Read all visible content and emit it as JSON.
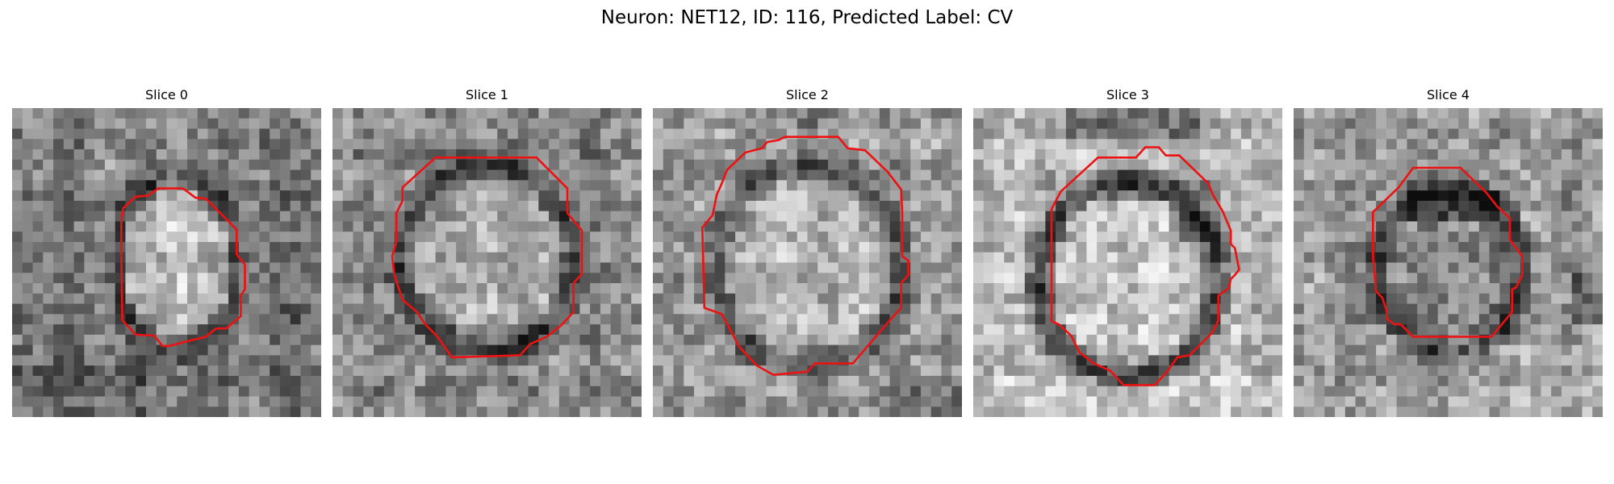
{
  "figure": {
    "title": "Neuron: NET12, ID: 116, Predicted Label: CV"
  },
  "panels": [
    {
      "title": "Slice 0"
    },
    {
      "title": "Slice 1"
    },
    {
      "title": "Slice 2"
    },
    {
      "title": "Slice 3"
    },
    {
      "title": "Slice 4"
    }
  ],
  "colors": {
    "contour": "#ee1111",
    "background": "#ffffff"
  }
}
